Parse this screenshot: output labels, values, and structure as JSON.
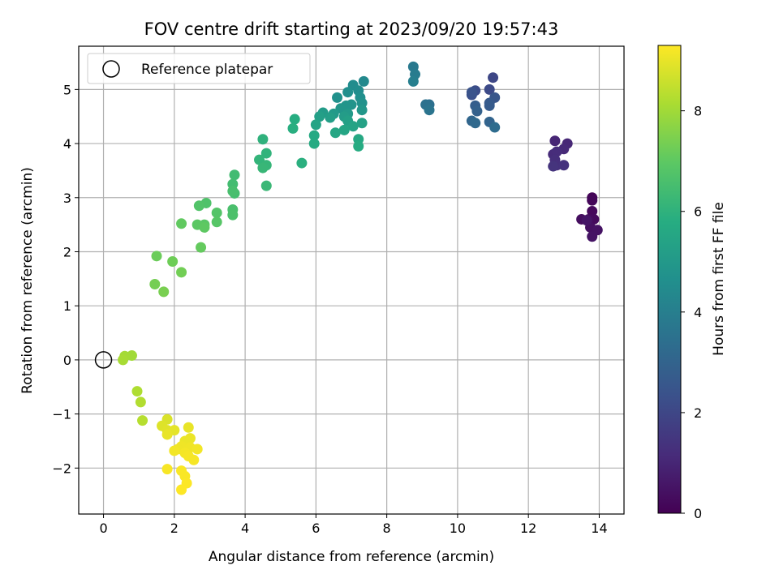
{
  "chart_data": {
    "type": "scatter",
    "title": "FOV centre drift starting at 2023/09/20 19:57:43",
    "xlabel": "Angular distance from reference (arcmin)",
    "ylabel": "Rotation from reference (arcmin)",
    "xlim": [
      -0.7,
      14.7
    ],
    "ylim": [
      -2.85,
      5.8
    ],
    "xticks": [
      0,
      2,
      4,
      6,
      8,
      10,
      12,
      14
    ],
    "xtick_labels": [
      "0",
      "2",
      "4",
      "6",
      "8",
      "10",
      "12",
      "14"
    ],
    "yticks": [
      -2,
      -1,
      0,
      1,
      2,
      3,
      4,
      5
    ],
    "ytick_labels": [
      "−2",
      "−1",
      "0",
      "1",
      "2",
      "3",
      "4",
      "5"
    ],
    "grid": true,
    "legend": {
      "placement": "top-left",
      "entries": [
        {
          "label": "Reference platepar",
          "marker": "open-circle"
        }
      ]
    },
    "reference_point": {
      "x": 0,
      "y": 0
    },
    "colorbar": {
      "label": "Hours from first FF file",
      "colormap": "viridis",
      "range": [
        0,
        9.3
      ],
      "ticks": [
        0,
        2,
        4,
        6,
        8
      ],
      "tick_labels": [
        "0",
        "2",
        "4",
        "6",
        "8"
      ]
    },
    "points": [
      {
        "x": 13.8,
        "y": 3.0,
        "c": 0.1
      },
      {
        "x": 13.8,
        "y": 2.95,
        "c": 0.15
      },
      {
        "x": 13.8,
        "y": 2.75,
        "c": 0.2
      },
      {
        "x": 13.85,
        "y": 2.6,
        "c": 0.25
      },
      {
        "x": 13.7,
        "y": 2.6,
        "c": 0.3
      },
      {
        "x": 13.5,
        "y": 2.6,
        "c": 0.35
      },
      {
        "x": 13.75,
        "y": 2.45,
        "c": 0.4
      },
      {
        "x": 13.95,
        "y": 2.4,
        "c": 0.45
      },
      {
        "x": 13.8,
        "y": 2.28,
        "c": 0.5
      },
      {
        "x": 13.65,
        "y": 2.58,
        "c": 0.55
      },
      {
        "x": 12.75,
        "y": 4.05,
        "c": 1.0
      },
      {
        "x": 13.1,
        "y": 4.0,
        "c": 1.05
      },
      {
        "x": 13.0,
        "y": 3.9,
        "c": 1.1
      },
      {
        "x": 12.7,
        "y": 3.8,
        "c": 1.15
      },
      {
        "x": 12.8,
        "y": 3.85,
        "c": 1.2
      },
      {
        "x": 12.75,
        "y": 3.7,
        "c": 1.25
      },
      {
        "x": 12.8,
        "y": 3.6,
        "c": 1.3
      },
      {
        "x": 13.0,
        "y": 3.6,
        "c": 1.35
      },
      {
        "x": 12.7,
        "y": 3.58,
        "c": 1.4
      },
      {
        "x": 11.0,
        "y": 5.22,
        "c": 2.0
      },
      {
        "x": 10.9,
        "y": 5.0,
        "c": 2.1
      },
      {
        "x": 10.5,
        "y": 4.98,
        "c": 2.2
      },
      {
        "x": 10.4,
        "y": 4.9,
        "c": 2.3
      },
      {
        "x": 10.4,
        "y": 4.95,
        "c": 2.4
      },
      {
        "x": 11.05,
        "y": 4.85,
        "c": 2.5
      },
      {
        "x": 10.9,
        "y": 4.75,
        "c": 2.6
      },
      {
        "x": 10.9,
        "y": 4.7,
        "c": 2.7
      },
      {
        "x": 10.5,
        "y": 4.7,
        "c": 2.8
      },
      {
        "x": 10.55,
        "y": 4.6,
        "c": 2.9
      },
      {
        "x": 10.9,
        "y": 4.4,
        "c": 3.0
      },
      {
        "x": 10.4,
        "y": 4.42,
        "c": 3.1
      },
      {
        "x": 10.5,
        "y": 4.38,
        "c": 3.2
      },
      {
        "x": 11.05,
        "y": 4.3,
        "c": 3.3
      },
      {
        "x": 9.2,
        "y": 4.72,
        "c": 3.4
      },
      {
        "x": 9.1,
        "y": 4.72,
        "c": 3.5
      },
      {
        "x": 9.2,
        "y": 4.62,
        "c": 3.6
      },
      {
        "x": 8.75,
        "y": 5.42,
        "c": 3.8
      },
      {
        "x": 8.8,
        "y": 5.28,
        "c": 3.9
      },
      {
        "x": 8.75,
        "y": 5.15,
        "c": 4.0
      },
      {
        "x": 7.35,
        "y": 5.15,
        "c": 4.4
      },
      {
        "x": 7.05,
        "y": 5.08,
        "c": 4.5
      },
      {
        "x": 7.2,
        "y": 4.98,
        "c": 4.55
      },
      {
        "x": 6.9,
        "y": 4.95,
        "c": 4.6
      },
      {
        "x": 7.25,
        "y": 4.85,
        "c": 4.65
      },
      {
        "x": 6.6,
        "y": 4.85,
        "c": 4.7
      },
      {
        "x": 7.3,
        "y": 4.75,
        "c": 4.75
      },
      {
        "x": 7.0,
        "y": 4.72,
        "c": 4.8
      },
      {
        "x": 6.85,
        "y": 4.7,
        "c": 4.85
      },
      {
        "x": 6.7,
        "y": 4.65,
        "c": 4.9
      },
      {
        "x": 7.3,
        "y": 4.62,
        "c": 4.95
      },
      {
        "x": 6.9,
        "y": 4.55,
        "c": 5.0
      },
      {
        "x": 6.5,
        "y": 4.55,
        "c": 5.05
      },
      {
        "x": 6.2,
        "y": 4.57,
        "c": 5.1
      },
      {
        "x": 6.8,
        "y": 4.5,
        "c": 5.15
      },
      {
        "x": 6.4,
        "y": 4.48,
        "c": 5.2
      },
      {
        "x": 6.1,
        "y": 4.5,
        "c": 5.25
      },
      {
        "x": 6.9,
        "y": 4.42,
        "c": 5.3
      },
      {
        "x": 7.3,
        "y": 4.38,
        "c": 5.35
      },
      {
        "x": 7.05,
        "y": 4.32,
        "c": 5.4
      },
      {
        "x": 6.0,
        "y": 4.35,
        "c": 5.45
      },
      {
        "x": 6.8,
        "y": 4.25,
        "c": 5.5
      },
      {
        "x": 6.55,
        "y": 4.2,
        "c": 5.55
      },
      {
        "x": 7.2,
        "y": 4.08,
        "c": 5.6
      },
      {
        "x": 5.95,
        "y": 4.15,
        "c": 5.65
      },
      {
        "x": 5.95,
        "y": 4.0,
        "c": 5.7
      },
      {
        "x": 7.2,
        "y": 3.95,
        "c": 5.75
      },
      {
        "x": 5.4,
        "y": 4.45,
        "c": 5.8
      },
      {
        "x": 5.35,
        "y": 4.28,
        "c": 5.85
      },
      {
        "x": 5.6,
        "y": 3.64,
        "c": 5.9
      },
      {
        "x": 4.5,
        "y": 4.08,
        "c": 6.0
      },
      {
        "x": 4.6,
        "y": 3.82,
        "c": 6.05
      },
      {
        "x": 4.4,
        "y": 3.7,
        "c": 6.1
      },
      {
        "x": 4.6,
        "y": 3.6,
        "c": 6.15
      },
      {
        "x": 4.5,
        "y": 3.55,
        "c": 6.2
      },
      {
        "x": 4.6,
        "y": 3.22,
        "c": 6.25
      },
      {
        "x": 3.7,
        "y": 3.42,
        "c": 6.4
      },
      {
        "x": 3.65,
        "y": 3.25,
        "c": 6.45
      },
      {
        "x": 3.7,
        "y": 3.08,
        "c": 6.5
      },
      {
        "x": 3.65,
        "y": 3.12,
        "c": 6.55
      },
      {
        "x": 3.65,
        "y": 2.78,
        "c": 6.6
      },
      {
        "x": 3.65,
        "y": 2.68,
        "c": 6.65
      },
      {
        "x": 2.9,
        "y": 2.9,
        "c": 6.7
      },
      {
        "x": 2.7,
        "y": 2.85,
        "c": 6.75
      },
      {
        "x": 3.2,
        "y": 2.72,
        "c": 6.8
      },
      {
        "x": 3.2,
        "y": 2.55,
        "c": 6.85
      },
      {
        "x": 2.85,
        "y": 2.5,
        "c": 6.9
      },
      {
        "x": 2.65,
        "y": 2.5,
        "c": 6.95
      },
      {
        "x": 2.85,
        "y": 2.45,
        "c": 7.0
      },
      {
        "x": 2.2,
        "y": 2.52,
        "c": 7.05
      },
      {
        "x": 2.75,
        "y": 2.08,
        "c": 7.1
      },
      {
        "x": 1.5,
        "y": 1.92,
        "c": 7.2
      },
      {
        "x": 1.95,
        "y": 1.82,
        "c": 7.25
      },
      {
        "x": 2.2,
        "y": 1.62,
        "c": 7.3
      },
      {
        "x": 1.45,
        "y": 1.4,
        "c": 7.35
      },
      {
        "x": 1.7,
        "y": 1.26,
        "c": 7.4
      },
      {
        "x": 0.8,
        "y": 0.08,
        "c": 8.0
      },
      {
        "x": 0.6,
        "y": 0.07,
        "c": 8.05
      },
      {
        "x": 0.55,
        "y": 0.0,
        "c": 8.1
      },
      {
        "x": 0.95,
        "y": -0.58,
        "c": 8.2
      },
      {
        "x": 1.05,
        "y": -0.78,
        "c": 8.25
      },
      {
        "x": 1.1,
        "y": -1.12,
        "c": 8.3
      },
      {
        "x": 1.8,
        "y": -1.1,
        "c": 8.8
      },
      {
        "x": 1.65,
        "y": -1.22,
        "c": 8.85
      },
      {
        "x": 1.8,
        "y": -1.3,
        "c": 8.9
      },
      {
        "x": 2.0,
        "y": -1.3,
        "c": 8.95
      },
      {
        "x": 1.8,
        "y": -1.38,
        "c": 9.0
      },
      {
        "x": 2.4,
        "y": -1.25,
        "c": 9.0
      },
      {
        "x": 2.3,
        "y": -1.5,
        "c": 9.05
      },
      {
        "x": 2.45,
        "y": -1.45,
        "c": 9.05
      },
      {
        "x": 2.2,
        "y": -1.6,
        "c": 9.1
      },
      {
        "x": 2.1,
        "y": -1.65,
        "c": 9.1
      },
      {
        "x": 2.45,
        "y": -1.62,
        "c": 9.12
      },
      {
        "x": 2.65,
        "y": -1.65,
        "c": 9.15
      },
      {
        "x": 2.0,
        "y": -1.68,
        "c": 9.15
      },
      {
        "x": 2.3,
        "y": -1.72,
        "c": 9.18
      },
      {
        "x": 2.4,
        "y": -1.78,
        "c": 9.2
      },
      {
        "x": 2.55,
        "y": -1.85,
        "c": 9.2
      },
      {
        "x": 1.8,
        "y": -2.02,
        "c": 9.22
      },
      {
        "x": 2.2,
        "y": -2.05,
        "c": 9.25
      },
      {
        "x": 2.3,
        "y": -2.15,
        "c": 9.25
      },
      {
        "x": 2.35,
        "y": -2.28,
        "c": 9.28
      },
      {
        "x": 2.2,
        "y": -2.4,
        "c": 9.3
      }
    ]
  }
}
